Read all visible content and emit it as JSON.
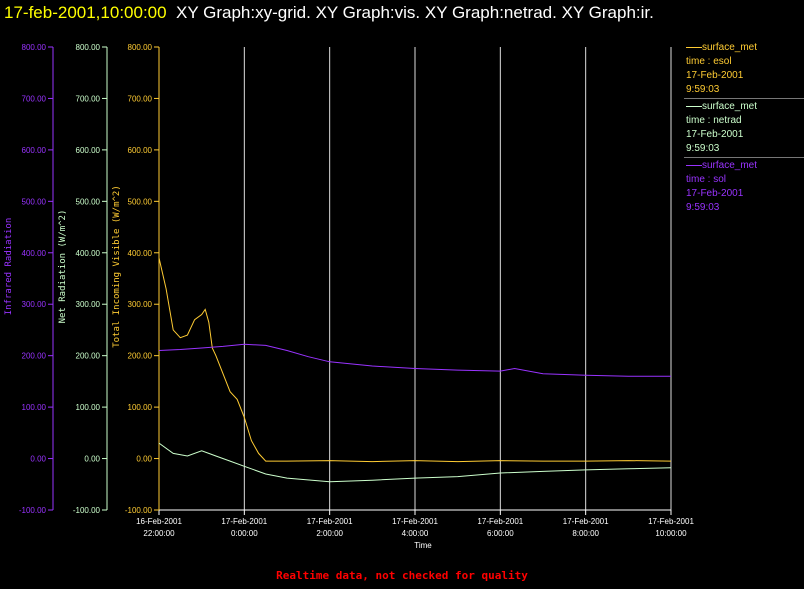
{
  "title": {
    "datetime": "17-feb-2001,10:00:00",
    "graphs": "XY Graph:xy-grid.  XY Graph:vis.  XY Graph:netrad.  XY Graph:ir."
  },
  "legend": [
    {
      "line": "surface_met",
      "field": "time : esol",
      "date": "17-Feb-2001",
      "time": "9:59:03",
      "color": "#ffcc33"
    },
    {
      "line": "surface_met",
      "field": "time : netrad",
      "date": "17-Feb-2001",
      "time": "9:59:03",
      "color": "#ccffcc"
    },
    {
      "line": "surface_met",
      "field": "time : sol",
      "date": "17-Feb-2001",
      "time": "9:59:03",
      "color": "#9933ff"
    }
  ],
  "footer": "Realtime data, not checked for quality",
  "chart_data": {
    "type": "line",
    "xlabel": "Time",
    "x_ticks": [
      {
        "date": "16-Feb-2001",
        "time": "22:00:00"
      },
      {
        "date": "17-Feb-2001",
        "time": "0:00:00"
      },
      {
        "date": "17-Feb-2001",
        "time": "2:00:00"
      },
      {
        "date": "17-Feb-2001",
        "time": "4:00:00"
      },
      {
        "date": "17-Feb-2001",
        "time": "6:00:00"
      },
      {
        "date": "17-Feb-2001",
        "time": "8:00:00"
      },
      {
        "date": "17-Feb-2001",
        "time": "10:00:00"
      }
    ],
    "xlim": [
      "2001-02-16T22:00:00",
      "2001-02-17T10:00:00"
    ],
    "grid": "vertical lines at x ticks",
    "y_axes": [
      {
        "label": "Infrared Radiation",
        "color": "#9933ff",
        "ylim": [
          -100,
          800
        ],
        "ticks": [
          "-100.00",
          "0.00",
          "100.00",
          "200.00",
          "300.00",
          "400.00",
          "500.00",
          "600.00",
          "700.00",
          "800.00"
        ]
      },
      {
        "label": "Net Radiation (W/m^2)",
        "color": "#ccffcc",
        "ylim": [
          -100,
          800
        ],
        "ticks": [
          "-100.00",
          "0.00",
          "100.00",
          "200.00",
          "300.00",
          "400.00",
          "500.00",
          "600.00",
          "700.00",
          "800.00"
        ]
      },
      {
        "label": "Total Incoming Visible (W/m^2)",
        "color": "#ffcc33",
        "ylim": [
          -100,
          800
        ],
        "ticks": [
          "-100.00",
          "0.00",
          "100.00",
          "200.00",
          "300.00",
          "400.00",
          "500.00",
          "600.00",
          "700.00",
          "800.00"
        ]
      }
    ],
    "series": [
      {
        "name": "time : esol",
        "color": "#ffcc33",
        "x": [
          "2001-02-16T22:00:00",
          "2001-02-16T22:10:00",
          "2001-02-16T22:20:00",
          "2001-02-16T22:30:00",
          "2001-02-16T22:40:00",
          "2001-02-16T22:50:00",
          "2001-02-16T23:00:00",
          "2001-02-16T23:05:00",
          "2001-02-16T23:10:00",
          "2001-02-16T23:15:00",
          "2001-02-16T23:20:00",
          "2001-02-16T23:30:00",
          "2001-02-16T23:40:00",
          "2001-02-16T23:50:00",
          "2001-02-17T00:00:00",
          "2001-02-17T00:10:00",
          "2001-02-17T00:20:00",
          "2001-02-17T00:30:00",
          "2001-02-17T01:00:00",
          "2001-02-17T02:00:00",
          "2001-02-17T03:00:00",
          "2001-02-17T04:00:00",
          "2001-02-17T05:00:00",
          "2001-02-17T06:00:00",
          "2001-02-17T07:00:00",
          "2001-02-17T08:00:00",
          "2001-02-17T09:00:00",
          "2001-02-17T10:00:00"
        ],
        "y": [
          390,
          330,
          250,
          235,
          240,
          270,
          280,
          290,
          265,
          215,
          200,
          165,
          130,
          115,
          80,
          35,
          10,
          -5,
          -5,
          -4,
          -6,
          -4,
          -6,
          -4,
          -5,
          -5,
          -4,
          -5
        ]
      },
      {
        "name": "time : netrad",
        "color": "#ccffcc",
        "x": [
          "2001-02-16T22:00:00",
          "2001-02-16T22:20:00",
          "2001-02-16T22:40:00",
          "2001-02-16T23:00:00",
          "2001-02-16T23:10:00",
          "2001-02-16T23:20:00",
          "2001-02-16T23:40:00",
          "2001-02-17T00:00:00",
          "2001-02-17T00:30:00",
          "2001-02-17T01:00:00",
          "2001-02-17T02:00:00",
          "2001-02-17T03:00:00",
          "2001-02-17T04:00:00",
          "2001-02-17T05:00:00",
          "2001-02-17T06:00:00",
          "2001-02-17T07:00:00",
          "2001-02-17T08:00:00",
          "2001-02-17T09:00:00",
          "2001-02-17T10:00:00"
        ],
        "y": [
          30,
          10,
          5,
          15,
          10,
          5,
          -5,
          -15,
          -30,
          -38,
          -45,
          -42,
          -38,
          -35,
          -28,
          -25,
          -22,
          -20,
          -18
        ]
      },
      {
        "name": "time : sol",
        "color": "#9933ff",
        "x": [
          "2001-02-16T22:00:00",
          "2001-02-16T22:30:00",
          "2001-02-16T23:00:00",
          "2001-02-16T23:30:00",
          "2001-02-17T00:00:00",
          "2001-02-17T00:30:00",
          "2001-02-17T01:00:00",
          "2001-02-17T01:30:00",
          "2001-02-17T02:00:00",
          "2001-02-17T03:00:00",
          "2001-02-17T04:00:00",
          "2001-02-17T05:00:00",
          "2001-02-17T06:00:00",
          "2001-02-17T06:20:00",
          "2001-02-17T07:00:00",
          "2001-02-17T08:00:00",
          "2001-02-17T09:00:00",
          "2001-02-17T10:00:00"
        ],
        "y": [
          210,
          212,
          215,
          218,
          222,
          220,
          210,
          198,
          188,
          180,
          175,
          172,
          170,
          175,
          165,
          162,
          160,
          160
        ]
      }
    ]
  }
}
